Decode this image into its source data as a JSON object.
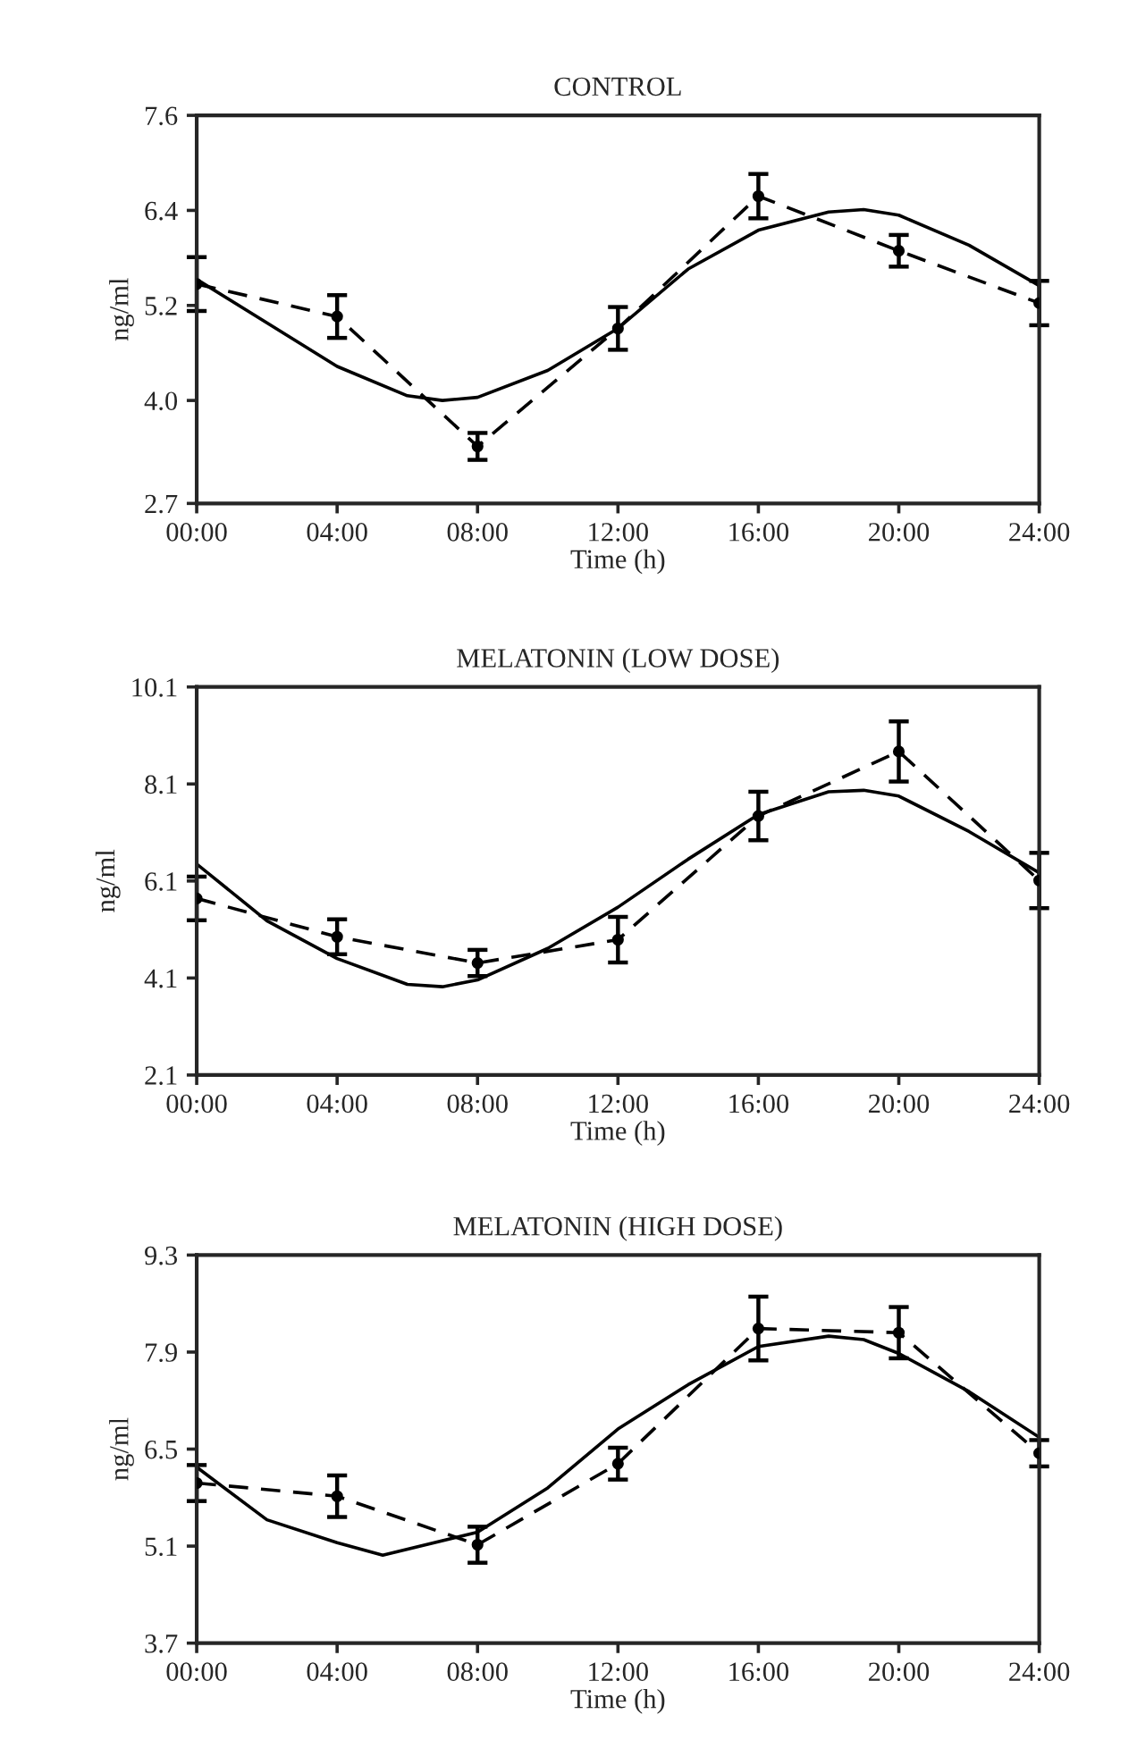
{
  "chart_data": [
    {
      "type": "line",
      "title": "CONTROL",
      "xlabel": "Time (h)",
      "ylabel": "ng/ml",
      "xlim": [
        0,
        24
      ],
      "ylim": [
        2.7,
        7.6
      ],
      "xticks": [
        {
          "value": 0,
          "label": "00:00"
        },
        {
          "value": 4,
          "label": "04:00"
        },
        {
          "value": 8,
          "label": "08:00"
        },
        {
          "value": 12,
          "label": "12:00"
        },
        {
          "value": 16,
          "label": "16:00"
        },
        {
          "value": 20,
          "label": "20:00"
        },
        {
          "value": 24,
          "label": "24:00"
        }
      ],
      "yticks": [
        2.7,
        {
          "value": 4,
          "label": "4.0"
        },
        5.2,
        6.4,
        7.6
      ],
      "grid": false,
      "series": [
        {
          "color": "#000000",
          "line_style": "dashed",
          "marker": "circle",
          "x": [
            0,
            4,
            8,
            12,
            16,
            20,
            24
          ],
          "values": [
            5.47,
            5.06,
            3.42,
            4.91,
            6.58,
            5.89,
            5.23
          ],
          "errors": [
            0.34,
            0.27,
            0.17,
            0.27,
            0.28,
            0.2,
            0.28
          ]
        },
        {
          "color": "#000000",
          "line_style": "solid",
          "marker": "none",
          "x": [
            0,
            2,
            4,
            6,
            7,
            8,
            10,
            12,
            14,
            16,
            18,
            19,
            20,
            22,
            24
          ],
          "values": [
            5.53,
            4.98,
            4.43,
            4.06,
            4.0,
            4.04,
            4.38,
            4.91,
            5.66,
            6.15,
            6.38,
            6.41,
            6.34,
            5.96,
            5.45
          ]
        }
      ]
    },
    {
      "type": "line",
      "title": "MELATONIN (LOW DOSE)",
      "xlabel": "Time (h)",
      "ylabel": "ng/ml",
      "xlim": [
        0,
        24
      ],
      "ylim": [
        2.1,
        10.1
      ],
      "xticks": [
        {
          "value": 0,
          "label": "00:00"
        },
        {
          "value": 4,
          "label": "04:00"
        },
        {
          "value": 8,
          "label": "08:00"
        },
        {
          "value": 12,
          "label": "12:00"
        },
        {
          "value": 16,
          "label": "16:00"
        },
        {
          "value": 20,
          "label": "20:00"
        },
        {
          "value": 24,
          "label": "24:00"
        }
      ],
      "yticks": [
        2.1,
        4.1,
        6.1,
        8.1,
        10.1
      ],
      "grid": false,
      "series": [
        {
          "color": "#000000",
          "line_style": "dashed",
          "marker": "circle",
          "x": [
            0,
            4,
            8,
            12,
            16,
            20,
            24
          ],
          "values": [
            5.74,
            4.95,
            4.41,
            4.89,
            7.44,
            8.77,
            6.11
          ],
          "errors": [
            0.45,
            0.36,
            0.27,
            0.47,
            0.5,
            0.62,
            0.57
          ]
        },
        {
          "color": "#000000",
          "line_style": "solid",
          "marker": "none",
          "x": [
            0,
            2,
            4,
            6,
            7,
            8,
            10,
            12,
            14,
            16,
            18,
            19,
            20,
            22,
            24
          ],
          "values": [
            6.45,
            5.28,
            4.5,
            3.97,
            3.92,
            4.06,
            4.71,
            5.56,
            6.55,
            7.47,
            7.94,
            7.97,
            7.85,
            7.12,
            6.27
          ]
        }
      ]
    },
    {
      "type": "line",
      "title": "MELATONIN (HIGH DOSE)",
      "xlabel": "Time (h)",
      "ylabel": "ng/ml",
      "xlim": [
        0,
        24
      ],
      "ylim": [
        3.7,
        9.3
      ],
      "xticks": [
        {
          "value": 0,
          "label": "00:00"
        },
        {
          "value": 4,
          "label": "04:00"
        },
        {
          "value": 8,
          "label": "08:00"
        },
        {
          "value": 12,
          "label": "12:00"
        },
        {
          "value": 16,
          "label": "16:00"
        },
        {
          "value": 20,
          "label": "20:00"
        },
        {
          "value": 24,
          "label": "24:00"
        }
      ],
      "yticks": [
        3.7,
        5.1,
        6.5,
        7.9,
        9.3
      ],
      "grid": false,
      "series": [
        {
          "color": "#000000",
          "line_style": "dashed",
          "marker": "circle",
          "x": [
            0,
            4,
            8,
            12,
            16,
            20,
            24
          ],
          "values": [
            6.01,
            5.82,
            5.12,
            6.29,
            8.24,
            8.18,
            6.44
          ],
          "errors": [
            0.26,
            0.3,
            0.26,
            0.23,
            0.46,
            0.37,
            0.19
          ]
        },
        {
          "color": "#000000",
          "line_style": "solid",
          "marker": "none",
          "x": [
            0,
            2,
            4,
            5.3,
            8,
            10,
            12,
            14,
            16,
            18,
            19,
            20,
            22,
            24
          ],
          "values": [
            6.24,
            5.48,
            5.15,
            4.97,
            5.3,
            5.94,
            6.79,
            7.43,
            7.98,
            8.13,
            8.08,
            7.88,
            7.33,
            6.67
          ]
        }
      ]
    }
  ]
}
